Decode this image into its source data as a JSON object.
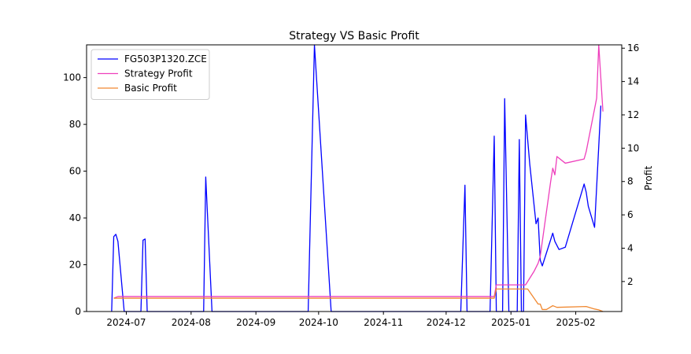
{
  "chart_data": {
    "type": "line",
    "title": "Strategy VS Basic Profit",
    "xlabel": "",
    "ylabel_left": "",
    "ylabel_right": "Profit",
    "legend_position": "upper-left",
    "xlim": [
      "2024-06-12",
      "2025-02-23"
    ],
    "ylim_left": [
      0,
      114
    ],
    "ylim_right": [
      0.2,
      16.2
    ],
    "x_ticks": [
      "2024-07",
      "2024-08",
      "2024-09",
      "2024-10",
      "2024-11",
      "2024-12",
      "2025-01",
      "2025-02"
    ],
    "x_tick_dates": [
      "2024-07-01",
      "2024-08-01",
      "2024-09-01",
      "2024-10-01",
      "2024-11-01",
      "2024-12-01",
      "2025-01-01",
      "2025-02-01"
    ],
    "y_ticks_left": [
      0,
      20,
      40,
      60,
      80,
      100
    ],
    "y_ticks_right": [
      2,
      4,
      6,
      8,
      10,
      12,
      14,
      16
    ],
    "series": [
      {
        "name": "FG503P1320.ZCE",
        "axis": "left",
        "color": "#0000ff",
        "points": [
          [
            "2024-06-24",
            0
          ],
          [
            "2024-06-25",
            32
          ],
          [
            "2024-06-26",
            33
          ],
          [
            "2024-06-27",
            30
          ],
          [
            "2024-06-30",
            0
          ],
          [
            "2024-07-08",
            0
          ],
          [
            "2024-07-09",
            30.5
          ],
          [
            "2024-07-10",
            31
          ],
          [
            "2024-07-11",
            0
          ],
          [
            "2024-08-07",
            0
          ],
          [
            "2024-08-08",
            57.5
          ],
          [
            "2024-08-11",
            0
          ],
          [
            "2024-09-26",
            0
          ],
          [
            "2024-09-29",
            114
          ],
          [
            "2024-10-07",
            0
          ],
          [
            "2024-12-08",
            0
          ],
          [
            "2024-12-10",
            54
          ],
          [
            "2024-12-11",
            0
          ],
          [
            "2024-12-22",
            0
          ],
          [
            "2024-12-24",
            75
          ],
          [
            "2024-12-25",
            0
          ],
          [
            "2024-12-28",
            0
          ],
          [
            "2024-12-29",
            91
          ],
          [
            "2024-12-31",
            0
          ],
          [
            "2025-01-04",
            0
          ],
          [
            "2025-01-05",
            73.5
          ],
          [
            "2025-01-06",
            0
          ],
          [
            "2025-01-07",
            0
          ],
          [
            "2025-01-08",
            84
          ],
          [
            "2025-01-10",
            63
          ],
          [
            "2025-01-13",
            37.5
          ],
          [
            "2025-01-14",
            40
          ],
          [
            "2025-01-15",
            22
          ],
          [
            "2025-01-16",
            19.5
          ],
          [
            "2025-01-21",
            33.5
          ],
          [
            "2025-01-22",
            30
          ],
          [
            "2025-01-24",
            26.5
          ],
          [
            "2025-01-27",
            27.5
          ],
          [
            "2025-02-05",
            54.5
          ],
          [
            "2025-02-06",
            51
          ],
          [
            "2025-02-07",
            45
          ],
          [
            "2025-02-10",
            36
          ],
          [
            "2025-02-13",
            88
          ]
        ]
      },
      {
        "name": "Strategy Profit",
        "axis": "right",
        "color": "#ee3fbc",
        "points": [
          [
            "2024-06-25",
            1.0
          ],
          [
            "2024-06-27",
            1.1
          ],
          [
            "2024-12-24",
            1.1
          ],
          [
            "2024-12-25",
            1.8
          ],
          [
            "2025-01-08",
            1.8
          ],
          [
            "2025-01-12",
            2.6
          ],
          [
            "2025-01-14",
            3.1
          ],
          [
            "2025-01-15",
            3.5
          ],
          [
            "2025-01-20",
            8.0
          ],
          [
            "2025-01-21",
            8.8
          ],
          [
            "2025-01-22",
            8.4
          ],
          [
            "2025-01-23",
            9.5
          ],
          [
            "2025-01-27",
            9.1
          ],
          [
            "2025-02-05",
            9.35
          ],
          [
            "2025-02-06",
            9.8
          ],
          [
            "2025-02-11",
            13.0
          ],
          [
            "2025-02-12",
            16.2
          ],
          [
            "2025-02-14",
            12.2
          ]
        ]
      },
      {
        "name": "Basic Profit",
        "axis": "right",
        "color": "#f08830",
        "points": [
          [
            "2024-06-25",
            1.0
          ],
          [
            "2024-12-24",
            1.0
          ],
          [
            "2024-12-25",
            1.55
          ],
          [
            "2025-01-09",
            1.55
          ],
          [
            "2025-01-14",
            0.65
          ],
          [
            "2025-01-15",
            0.65
          ],
          [
            "2025-01-16",
            0.32
          ],
          [
            "2025-01-18",
            0.32
          ],
          [
            "2025-01-21",
            0.55
          ],
          [
            "2025-01-23",
            0.45
          ],
          [
            "2025-02-06",
            0.5
          ],
          [
            "2025-02-10",
            0.35
          ],
          [
            "2025-02-12",
            0.3
          ],
          [
            "2025-02-14",
            0.2
          ]
        ]
      }
    ]
  }
}
